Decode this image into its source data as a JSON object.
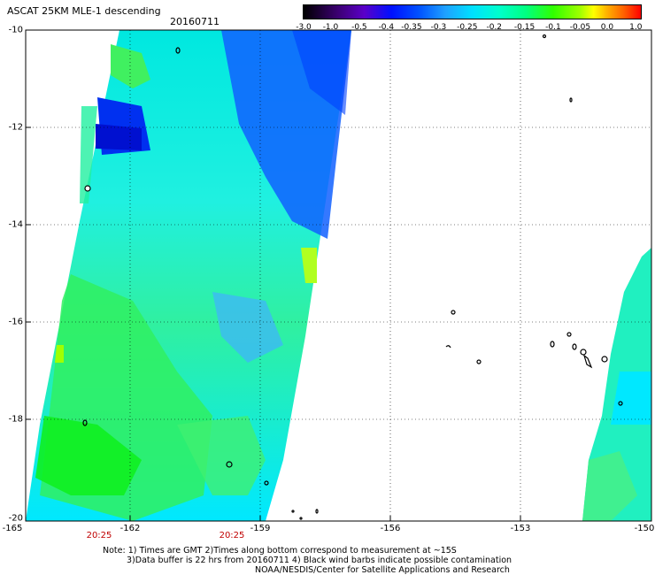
{
  "header": {
    "title": "ASCAT 25KM MLE-1 descending",
    "date": "20160711"
  },
  "colorbar": {
    "labels": [
      "-3.0",
      "-1.0",
      "-0.5",
      "-0.4",
      "-0.35",
      "-0.3",
      "-0.25",
      "-0.2",
      "-0.15",
      "-0.1",
      "-0.05",
      "0.0",
      "1.0"
    ],
    "colors": [
      "#000000",
      "#3b0070",
      "#5a00c8",
      "#0010ff",
      "#0050ff",
      "#1fa0ff",
      "#00e0ff",
      "#00ffcc",
      "#00ff80",
      "#30ff00",
      "#a0ff00",
      "#ffff00",
      "#ffb000",
      "#ff6000",
      "#ff0000"
    ]
  },
  "axes": {
    "lat_labels": [
      "-10",
      "-12",
      "-14",
      "-16",
      "-18",
      "-20"
    ],
    "lon_labels": [
      "-165",
      "-162",
      "-159",
      "-156",
      "-153",
      "-150"
    ]
  },
  "times": [
    "20:25",
    "20:25"
  ],
  "notes": {
    "line1": "Note: 1) Times are GMT 2)Times along bottom correspond to measurement at ~15S",
    "line2": "3)Data buffer is 22 hrs from 20160711 4) Black wind barbs indicate possible contamination",
    "line3": "NOAA/NESDIS/Center for Satellite Applications and Research"
  }
}
